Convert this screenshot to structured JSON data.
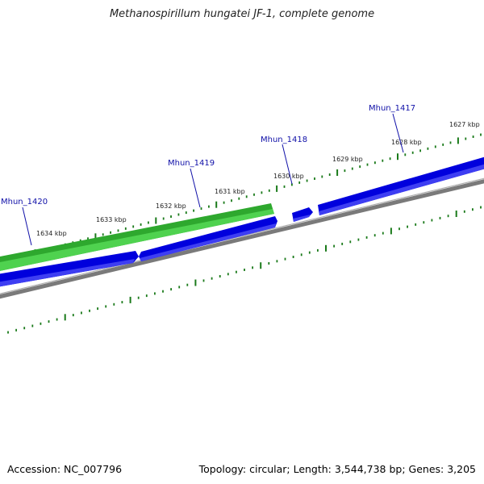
{
  "title": "Methanospirillum hungatei JF-1, complete genome",
  "footer": {
    "accession": "Accession: NC_007796",
    "summary": "Topology: circular; Length: 3,544,738 bp; Genes: 3,205"
  },
  "colors": {
    "forward_gene": "#1a8f1a",
    "reverse_gene": "#0000e0",
    "backbone": "#808080",
    "ticks": "#1a7a1a",
    "gene_label": "#1010a8"
  },
  "scale_labels": [
    "1634 kbp",
    "1633 kbp",
    "1632 kbp",
    "1631 kbp",
    "1630 kbp",
    "1629 kbp",
    "1628 kbp",
    "1627 kbp"
  ],
  "gene_labels": [
    "Mhun_1420",
    "Mhun_1419",
    "Mhun_1418",
    "Mhun_1417"
  ]
}
